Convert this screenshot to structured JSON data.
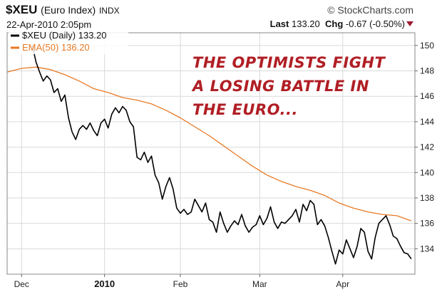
{
  "header": {
    "symbol": "$XEU",
    "name": "(Euro Index)",
    "exchange": "INDX",
    "brand": "© StockCharts.com",
    "date": "22-Apr-2010 2:05pm",
    "last_label": "Last",
    "last_value": "133.20",
    "chg_label": "Chg",
    "chg_value": "-0.67 (-0.50%)"
  },
  "annotation": {
    "lines": [
      "THE OPTIMISTS FIGHT",
      "A LOSING BATTLE IN",
      "THE EURO..."
    ]
  },
  "colors": {
    "price": "#000000",
    "ema": "#e87a26",
    "grid": "#d9d9d9",
    "annotation": "#b01e24",
    "frame": "#888888"
  },
  "chart_data": {
    "type": "line",
    "legend_position": "top-left",
    "grid": true,
    "ylim": [
      132,
      151
    ],
    "y_ticks": [
      "150",
      "148",
      "146",
      "144",
      "142",
      "140",
      "138",
      "136",
      "134"
    ],
    "y_tick_values": [
      150,
      148,
      146,
      144,
      142,
      140,
      138,
      136,
      134
    ],
    "x_ticks": [
      {
        "label": "Dec",
        "index": 4,
        "bold": false
      },
      {
        "label": "2010",
        "index": 27,
        "bold": true
      },
      {
        "label": "Feb",
        "index": 48,
        "bold": false
      },
      {
        "label": "Mar",
        "index": 70,
        "bold": false
      },
      {
        "label": "Apr",
        "index": 93,
        "bold": false
      }
    ],
    "x_count": 114,
    "series": [
      {
        "name": "EMA(50)",
        "legend": "EMA(50) 136.20",
        "color": "#e87a26",
        "width": 1.3,
        "x": [
          0,
          4,
          8,
          12,
          16,
          20,
          24,
          28,
          32,
          36,
          40,
          44,
          48,
          52,
          56,
          60,
          64,
          68,
          72,
          76,
          80,
          84,
          88,
          92,
          96,
          100,
          104,
          108,
          112
        ],
        "values": [
          147.9,
          148.2,
          148.3,
          148.1,
          147.7,
          147.2,
          146.6,
          146.3,
          145.9,
          145.7,
          145.4,
          144.9,
          144.3,
          143.6,
          142.9,
          142.1,
          141.3,
          140.5,
          139.8,
          139.3,
          138.9,
          138.6,
          138.2,
          137.6,
          137.2,
          136.9,
          136.7,
          136.6,
          136.2
        ]
      },
      {
        "name": "$XEU",
        "legend": "$XEU (Daily) 133.20",
        "color": "#000000",
        "width": 1.6,
        "x": [
          7,
          8,
          9,
          10,
          11,
          12,
          13,
          14,
          15,
          16,
          17,
          18,
          19,
          20,
          21,
          22,
          23,
          24,
          25,
          26,
          27,
          28,
          29,
          30,
          31,
          32,
          33,
          34,
          35,
          36,
          37,
          38,
          39,
          40,
          41,
          42,
          43,
          44,
          45,
          46,
          47,
          48,
          49,
          50,
          51,
          52,
          53,
          54,
          55,
          56,
          57,
          58,
          59,
          60,
          61,
          62,
          63,
          64,
          65,
          66,
          67,
          68,
          69,
          70,
          71,
          72,
          73,
          74,
          75,
          76,
          77,
          78,
          79,
          80,
          81,
          82,
          83,
          84,
          85,
          86,
          87,
          88,
          89,
          90,
          91,
          92,
          93,
          94,
          95,
          96,
          97,
          98,
          99,
          100,
          101,
          102,
          103,
          104,
          105,
          106,
          107,
          108,
          109,
          110,
          111,
          112
        ],
        "values": [
          150.0,
          148.7,
          147.9,
          147.2,
          147.6,
          147.3,
          146.3,
          146.6,
          145.6,
          146.1,
          144.3,
          143.2,
          142.6,
          143.4,
          143.7,
          143.4,
          143.9,
          143.3,
          142.9,
          143.9,
          144.2,
          143.5,
          144.6,
          145.1,
          144.7,
          145.2,
          144.9,
          144.0,
          143.6,
          141.2,
          141.0,
          141.6,
          140.8,
          141.3,
          139.8,
          139.2,
          137.9,
          138.9,
          139.6,
          138.7,
          137.2,
          136.8,
          137.1,
          136.7,
          136.9,
          137.9,
          137.4,
          136.9,
          137.6,
          136.3,
          136.1,
          135.3,
          136.9,
          136.0,
          135.3,
          135.8,
          136.2,
          135.9,
          136.7,
          135.8,
          135.3,
          135.7,
          135.9,
          136.6,
          135.9,
          136.4,
          137.3,
          136.1,
          135.6,
          136.1,
          136.0,
          136.3,
          136.6,
          137.1,
          136.1,
          137.5,
          137.0,
          137.8,
          137.5,
          135.9,
          136.3,
          135.8,
          134.9,
          133.8,
          132.8,
          133.9,
          133.6,
          134.7,
          134.0,
          133.3,
          134.2,
          135.6,
          135.3,
          133.8,
          133.2,
          134.9,
          136.0,
          136.3,
          136.6,
          135.9,
          135.0,
          134.8,
          134.2,
          133.7,
          133.6,
          133.2
        ]
      }
    ]
  }
}
